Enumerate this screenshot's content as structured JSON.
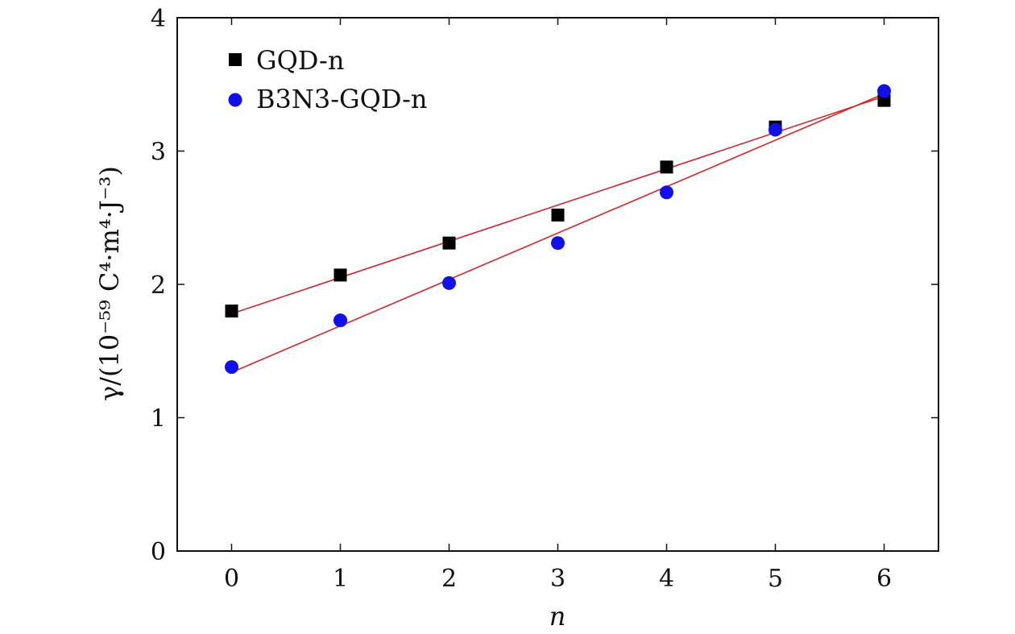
{
  "chart_data": {
    "type": "scatter",
    "xlabel": "n",
    "ylabel": "γ/(10⁻⁵⁹ C⁴·m⁴·J⁻³)",
    "xlim": [
      -0.5,
      6.5
    ],
    "ylim": [
      0,
      4
    ],
    "x_ticks": [
      "0",
      "1",
      "2",
      "3",
      "4",
      "5",
      "6"
    ],
    "y_ticks": [
      "0",
      "1",
      "2",
      "3",
      "4"
    ],
    "grid": false,
    "legend_position": "top-left",
    "series": [
      {
        "name": "GQD-n",
        "marker": "square",
        "color": "#000000",
        "x": [
          0,
          1,
          2,
          3,
          4,
          5,
          6
        ],
        "y": [
          1.8,
          2.07,
          2.31,
          2.52,
          2.88,
          3.18,
          3.38
        ],
        "fit": {
          "x": [
            0,
            6
          ],
          "y": [
            1.78,
            3.41
          ],
          "color": "#d62728"
        }
      },
      {
        "name": "B3N3-GQD-n",
        "marker": "circle",
        "color": "#1010ee",
        "x": [
          0,
          1,
          2,
          3,
          4,
          5,
          6
        ],
        "y": [
          1.38,
          1.73,
          2.01,
          2.31,
          2.69,
          3.16,
          3.45
        ],
        "fit": {
          "x": [
            0,
            6
          ],
          "y": [
            1.34,
            3.43
          ],
          "color": "#d62728"
        }
      }
    ]
  }
}
